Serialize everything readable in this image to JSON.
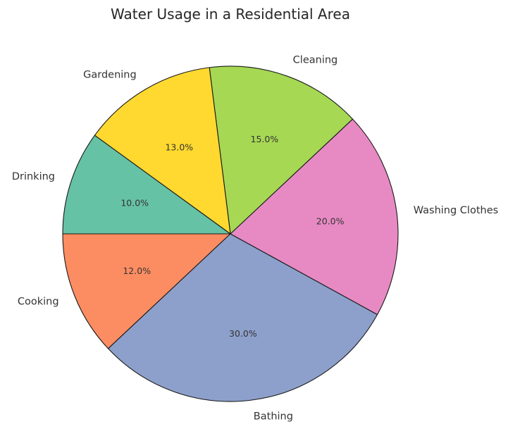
{
  "chart_data": {
    "type": "pie",
    "title": "Water Usage in a Residential Area",
    "slices": [
      {
        "label": "Drinking",
        "value": 10,
        "pct_label": "10.0%",
        "color": "#66c2a5"
      },
      {
        "label": "Cooking",
        "value": 12,
        "pct_label": "12.0%",
        "color": "#fc8d62"
      },
      {
        "label": "Bathing",
        "value": 30,
        "pct_label": "30.0%",
        "color": "#8da0cb"
      },
      {
        "label": "Washing Clothes",
        "value": 20,
        "pct_label": "20.0%",
        "color": "#e78ac3"
      },
      {
        "label": "Cleaning",
        "value": 15,
        "pct_label": "15.0%",
        "color": "#a6d854"
      },
      {
        "label": "Gardening",
        "value": 13,
        "pct_label": "13.0%",
        "color": "#ffd92f"
      }
    ],
    "start_angle_deg": 144,
    "direction": "counterclockwise",
    "legend": "none"
  }
}
